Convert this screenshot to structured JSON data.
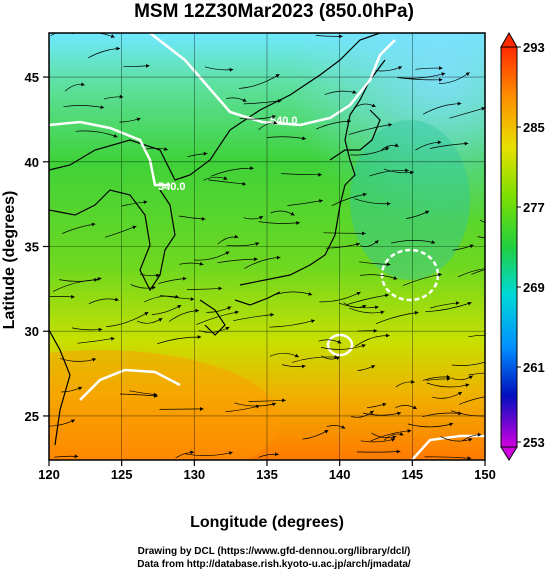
{
  "title": "MSM 12Z30Mar2023 (850.0hPa)",
  "chart_data": {
    "type": "heatmap",
    "title": "MSM 12Z30Mar2023 (850.0hPa)",
    "xlabel": "Longitude (degrees)",
    "ylabel": "Latitude  (degrees)",
    "xlim": [
      120,
      150
    ],
    "ylim": [
      22.4,
      47.6
    ],
    "x_ticks": [
      "120",
      "125",
      "130",
      "135",
      "140",
      "145",
      "150"
    ],
    "y_ticks": [
      "25",
      "30",
      "35",
      "40",
      "45"
    ],
    "colorbar": {
      "min": 253,
      "max": 293,
      "tick_labels": [
        "293",
        "285",
        "277",
        "269",
        "261",
        "253"
      ]
    },
    "contour_labels": [
      "540.0",
      "540.0"
    ],
    "grid": true,
    "overlay": "streamlines"
  },
  "credits": {
    "line1": "Drawing by DCL (https://www.gfd-dennou.org/library/dcl/)",
    "line2": "Data from http://database.rish.kyoto-u.ac.jp/arch/jmadata/"
  }
}
